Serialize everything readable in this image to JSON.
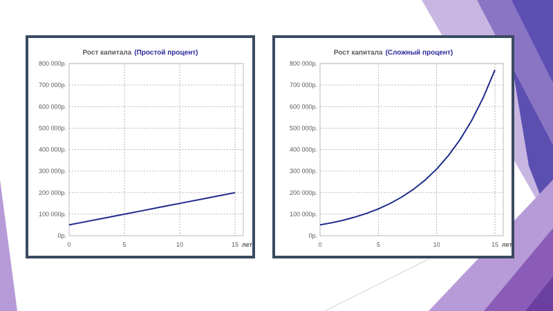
{
  "chart_data": [
    {
      "type": "line",
      "title": "Рост капитала",
      "subtitle": "(Простой процент)",
      "x_unit": "лет",
      "x_ticks": [
        "0",
        "5",
        "10",
        "15"
      ],
      "y_ticks": [
        "0р.",
        "100 000р.",
        "200 000р.",
        "300 000р.",
        "400 000р.",
        "500 000р.",
        "600 000р.",
        "700 000р.",
        "800 000р."
      ],
      "xlim": [
        0,
        15
      ],
      "ylim": [
        0,
        800000
      ],
      "grid": true,
      "series": [
        {
          "x": [
            0,
            1,
            2,
            3,
            4,
            5,
            6,
            7,
            8,
            9,
            10,
            11,
            12,
            13,
            14,
            15
          ],
          "y": [
            50000,
            60000,
            70000,
            80000,
            90000,
            100000,
            110000,
            120000,
            130000,
            140000,
            150000,
            160000,
            170000,
            180000,
            190000,
            200000
          ]
        }
      ]
    },
    {
      "type": "line",
      "title": "Рост капитала",
      "subtitle": "(Сложный процент)",
      "x_unit": "лет",
      "x_ticks": [
        "0",
        "5",
        "10",
        "15"
      ],
      "y_ticks": [
        "0р.",
        "100 000р.",
        "200 000р.",
        "300 000р.",
        "400 000р.",
        "500 000р.",
        "600 000р.",
        "700 000р.",
        "800 000р."
      ],
      "xlim": [
        0,
        15
      ],
      "ylim": [
        0,
        800000
      ],
      "grid": true,
      "series": [
        {
          "x": [
            0,
            1,
            2,
            3,
            4,
            5,
            6,
            7,
            8,
            9,
            10,
            11,
            12,
            13,
            14,
            15
          ],
          "y": [
            50000,
            60000,
            72000,
            86400,
            103680,
            124416,
            149299,
            179159,
            214991,
            257989,
            309587,
            371504,
            445805,
            534966,
            641959,
            770351
          ]
        }
      ]
    }
  ],
  "colors": {
    "line": "#1e2a8c",
    "title_accent": "#2a2a9a",
    "frame": "#3a4a60",
    "purple_dark": "#5b4aa6",
    "purple_mid": "#7e5cb0",
    "purple_light": "#b59ad6"
  }
}
